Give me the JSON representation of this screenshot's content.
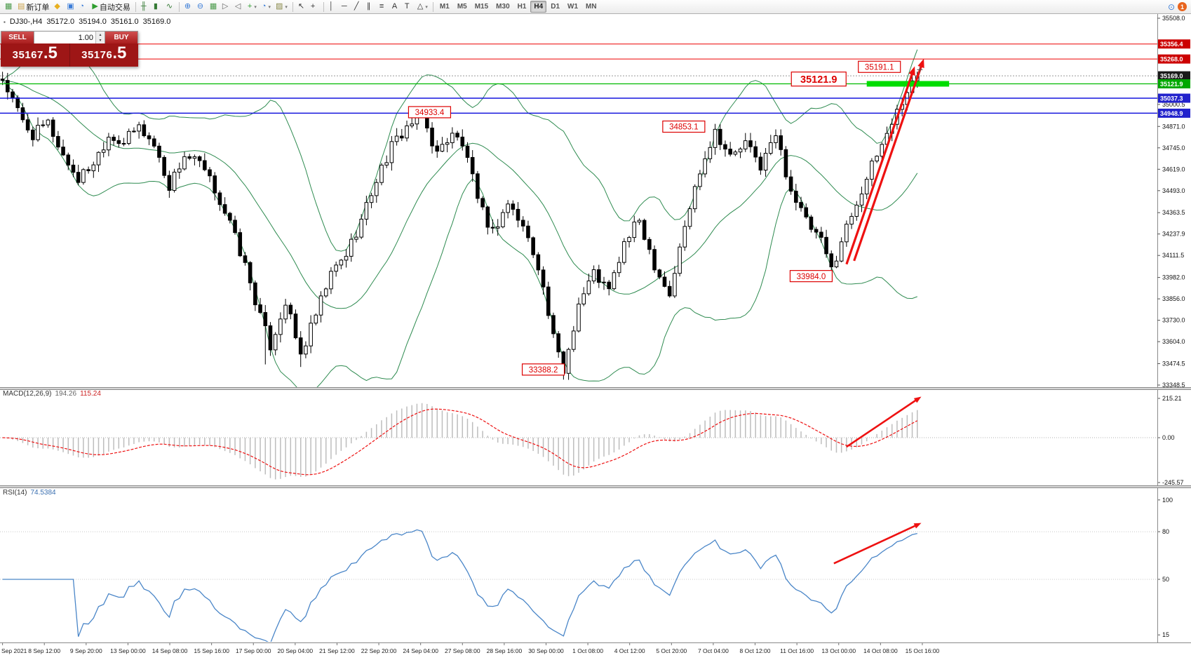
{
  "toolbar": {
    "caret_glyph": "▾",
    "left_groups": [
      {
        "items": [
          {
            "name": "chart-window-icon",
            "glyph": "▦",
            "color": "#4a9a4a"
          },
          {
            "name": "new-order-button",
            "glyph": "▤",
            "color": "#caa24a",
            "label": "新订单"
          },
          {
            "name": "metaeditor-icon",
            "glyph": "◆",
            "color": "#e8b020"
          },
          {
            "name": "market-watch-icon",
            "glyph": "▣",
            "color": "#3b7dd8"
          },
          {
            "name": "strategy-tester-icon",
            "glyph": "◔",
            "color": "#3b7dd8"
          },
          {
            "name": "autotrading-button",
            "glyph": "▶",
            "color": "#2e9e2e",
            "label": "自动交易"
          }
        ]
      },
      {
        "items": [
          {
            "name": "ohlc-bars-icon",
            "glyph": "╫",
            "color": "#357a35"
          },
          {
            "name": "candlestick-chart-icon",
            "glyph": "▮",
            "color": "#357a35"
          },
          {
            "name": "line-chart-icon",
            "glyph": "∿",
            "color": "#357a35"
          }
        ]
      },
      {
        "items": [
          {
            "name": "zoom-in-icon",
            "glyph": "⊕",
            "color": "#3b7dd8"
          },
          {
            "name": "zoom-out-icon",
            "glyph": "⊖",
            "color": "#3b7dd8"
          },
          {
            "name": "tile-windows-icon",
            "glyph": "▦",
            "color": "#4a9a4a"
          },
          {
            "name": "auto-scroll-icon",
            "glyph": "▷",
            "color": "#666666"
          },
          {
            "name": "chart-shift-icon",
            "glyph": "◁",
            "color": "#666666"
          },
          {
            "name": "indicators-icon",
            "glyph": "+",
            "color": "#2e9e2e",
            "caret": true
          },
          {
            "name": "periods-icon",
            "glyph": "◔",
            "color": "#3b7dd8",
            "caret": true
          },
          {
            "name": "templates-icon",
            "glyph": "▨",
            "color": "#8a8a4a",
            "caret": true
          }
        ]
      },
      {
        "items": [
          {
            "name": "cursor-icon",
            "glyph": "↖",
            "color": "#333333"
          },
          {
            "name": "crosshair-icon",
            "glyph": "+",
            "color": "#333333"
          }
        ]
      },
      {
        "items": [
          {
            "name": "vertical-line-icon",
            "glyph": "│",
            "color": "#333333"
          },
          {
            "name": "horizontal-line-icon",
            "glyph": "─",
            "color": "#333333"
          },
          {
            "name": "trendline-icon",
            "glyph": "╱",
            "color": "#333333"
          },
          {
            "name": "equidistant-channel-icon",
            "glyph": "∥",
            "color": "#333333"
          },
          {
            "name": "fibonacci-icon",
            "glyph": "≡",
            "color": "#333333"
          },
          {
            "name": "text-icon",
            "glyph": "A",
            "color": "#333333"
          },
          {
            "name": "text-label-icon",
            "glyph": "T",
            "color": "#333333"
          },
          {
            "name": "shapes-icon",
            "glyph": "△",
            "color": "#333333",
            "caret": true
          }
        ]
      }
    ],
    "timeframes": [
      {
        "label": "M1"
      },
      {
        "label": "M5"
      },
      {
        "label": "M15"
      },
      {
        "label": "M30"
      },
      {
        "label": "H1"
      },
      {
        "label": "H4",
        "active": true
      },
      {
        "label": "D1"
      },
      {
        "label": "W1"
      },
      {
        "label": "MN"
      }
    ],
    "right_items": [
      {
        "name": "search-icon",
        "glyph": "⊙",
        "color": "#3b7dd8"
      },
      {
        "name": "notification-badge",
        "label": "1"
      }
    ]
  },
  "ohlc": {
    "icon_glyph": "▪",
    "symbol_period": "DJ30-,H4",
    "open": "35172.0",
    "high": "35194.0",
    "low": "35161.0",
    "close": "35169.0"
  },
  "trade_panel": {
    "sell_label": "SELL",
    "buy_label": "BUY",
    "volume": "1.00",
    "spin_up": "▴",
    "spin_down": "▾",
    "sell_price": {
      "int": "35167",
      "pips": ".5"
    },
    "buy_price": {
      "int": "35176",
      "pips": ".5"
    }
  },
  "chart_data": {
    "type": "candlestick",
    "symbol": "DJ30-",
    "timeframe": "H4",
    "y_axis": {
      "min": 33348.5,
      "max": 35508.0,
      "ticks": [
        35508.0,
        35000.5,
        34871.0,
        34745.0,
        34619.0,
        34493.0,
        34363.5,
        34237.9,
        34111.5,
        33982.0,
        33856.0,
        33730.0,
        33604.0,
        33474.5,
        33348.5
      ]
    },
    "price_badges": [
      {
        "value": "35356.4",
        "price": 35356.4,
        "bg": "#cc0000"
      },
      {
        "value": "35268.0",
        "price": 35268.0,
        "bg": "#cc0000"
      },
      {
        "value": "35169.0",
        "price": 35169.0,
        "bg": "#1a1a1a"
      },
      {
        "value": "35121.9",
        "price": 35121.9,
        "bg": "#00a800"
      },
      {
        "value": "35037.3",
        "price": 35037.3,
        "bg": "#2222cc"
      },
      {
        "value": "34948.9",
        "price": 34948.9,
        "bg": "#2222cc"
      }
    ],
    "h_lines": [
      {
        "price": 35356.4,
        "color": "#ee0000",
        "width": 1
      },
      {
        "price": 35268.0,
        "color": "#ee0000",
        "width": 1
      },
      {
        "price": 35169.0,
        "color": "#999999",
        "width": 1,
        "dash": "2,2"
      },
      {
        "price": 35121.9,
        "color": "#00bb00",
        "width": 1.2
      },
      {
        "price": 35037.3,
        "color": "#1515dd",
        "width": 1.5
      },
      {
        "price": 34948.9,
        "color": "#1515dd",
        "width": 1.5
      }
    ],
    "highlight_segment": {
      "price": 35121.9,
      "bar_start": 171,
      "bar_end": 187.3,
      "color": "#00dd00",
      "width": 8
    },
    "bar_slots": 229,
    "candle_count": 182,
    "candle_colors": {
      "up_fill": "#ffffff",
      "down_fill": "#000000",
      "outline": "#000000"
    },
    "price_path": [
      [
        0,
        35150
      ],
      [
        2,
        35020
      ],
      [
        4,
        34900
      ],
      [
        6,
        34820
      ],
      [
        9,
        34890
      ],
      [
        12,
        34700
      ],
      [
        15,
        34560
      ],
      [
        18,
        34660
      ],
      [
        21,
        34820
      ],
      [
        24,
        34780
      ],
      [
        27,
        34870
      ],
      [
        30,
        34760
      ],
      [
        33,
        34520
      ],
      [
        36,
        34700
      ],
      [
        39,
        34650
      ],
      [
        42,
        34500
      ],
      [
        45,
        34300
      ],
      [
        48,
        34050
      ],
      [
        51,
        33750
      ],
      [
        53,
        33580
      ],
      [
        56,
        33840
      ],
      [
        59,
        33520
      ],
      [
        62,
        33760
      ],
      [
        65,
        34000
      ],
      [
        68,
        34120
      ],
      [
        71,
        34320
      ],
      [
        74,
        34560
      ],
      [
        77,
        34750
      ],
      [
        80,
        34870
      ],
      [
        83,
        34930
      ],
      [
        86,
        34710
      ],
      [
        89,
        34840
      ],
      [
        92,
        34700
      ],
      [
        94,
        34420
      ],
      [
        97,
        34250
      ],
      [
        100,
        34420
      ],
      [
        103,
        34280
      ],
      [
        106,
        34060
      ],
      [
        109,
        33620
      ],
      [
        111,
        33430
      ],
      [
        114,
        33830
      ],
      [
        117,
        34010
      ],
      [
        120,
        33900
      ],
      [
        123,
        34180
      ],
      [
        126,
        34320
      ],
      [
        129,
        34060
      ],
      [
        132,
        33880
      ],
      [
        135,
        34280
      ],
      [
        138,
        34620
      ],
      [
        141,
        34850
      ],
      [
        144,
        34690
      ],
      [
        147,
        34770
      ],
      [
        150,
        34640
      ],
      [
        153,
        34820
      ],
      [
        156,
        34500
      ],
      [
        159,
        34310
      ],
      [
        162,
        34190
      ],
      [
        164,
        34030
      ],
      [
        167,
        34280
      ],
      [
        170,
        34500
      ],
      [
        173,
        34700
      ],
      [
        176,
        34900
      ],
      [
        179,
        35080
      ],
      [
        181,
        35169
      ]
    ],
    "wick_overrides": [
      {
        "bar": 52,
        "low": 33470
      },
      {
        "bar": 59,
        "low": 33455
      },
      {
        "bar": 111,
        "low": 33388.2
      },
      {
        "bar": 83,
        "high": 34933.4
      },
      {
        "bar": 141,
        "high": 34853.1
      },
      {
        "bar": 164,
        "low": 33984.0
      },
      {
        "bar": 180,
        "high": 35191.1
      },
      {
        "bar": 181,
        "high": 35194.0
      }
    ],
    "bollinger": {
      "period": 20,
      "deviation": 2,
      "color": "#2e8b50"
    },
    "annotations": [
      {
        "text": "34933.4",
        "bar": 84.5,
        "price": 34955,
        "big": false
      },
      {
        "text": "34853.1",
        "bar": 134.8,
        "price": 34870,
        "big": false
      },
      {
        "text": "33388.2",
        "bar": 107,
        "price": 33440,
        "big": false
      },
      {
        "text": "33984.0",
        "bar": 160,
        "price": 33990,
        "big": false
      },
      {
        "text": "35121.9",
        "bar": 161.5,
        "price": 35150,
        "big": true
      },
      {
        "text": "35191.1",
        "bar": 173.5,
        "price": 35222,
        "big": false
      }
    ],
    "arrows_main": [
      {
        "x1_bar": 167,
        "y1_price": 34060,
        "x2_bar": 180.5,
        "y2_price": 35225
      },
      {
        "x1_bar": 168.5,
        "y1_price": 34080,
        "x2_bar": 182.3,
        "y2_price": 35270
      }
    ],
    "last_bar_marker": {
      "bar": 181.5,
      "price": 35205
    },
    "macd": {
      "label": "MACD(12,26,9)",
      "value_main": "194.26",
      "value_signal": "115.24",
      "axis": [
        215.21,
        0,
        -245.57
      ],
      "hist_color": "#bdbdbd",
      "signal_color": "#ee1111",
      "arrow": {
        "x1_bar": 167,
        "y1_val": -50,
        "x2_bar": 181.8,
        "y2_val": 225
      }
    },
    "rsi": {
      "label": "RSI(14)",
      "value": "74.5384",
      "axis": [
        100,
        80,
        50,
        15
      ],
      "levels": [
        80,
        50
      ],
      "color": "#4a86c8",
      "arrow": {
        "x1_bar": 164.5,
        "y1_val": 60,
        "x2_bar": 181.8,
        "y2_val": 85.5
      }
    },
    "x_axis": {
      "labels": [
        "Sep 2021",
        "8 Sep 12:00",
        "9 Sep 20:00",
        "13 Sep 00:00",
        "14 Sep 08:00",
        "15 Sep 16:00",
        "17 Sep 00:00",
        "20 Sep 04:00",
        "21 Sep 12:00",
        "22 Sep 20:00",
        "24 Sep 04:00",
        "27 Sep 08:00",
        "28 Sep 16:00",
        "30 Sep 00:00",
        "1 Oct 08:00",
        "4 Oct 12:00",
        "5 Oct 20:00",
        "7 Oct 04:00",
        "8 Oct 12:00",
        "11 Oct 16:00",
        "13 Oct 00:00",
        "14 Oct 08:00",
        "15 Oct 16:00"
      ]
    }
  }
}
